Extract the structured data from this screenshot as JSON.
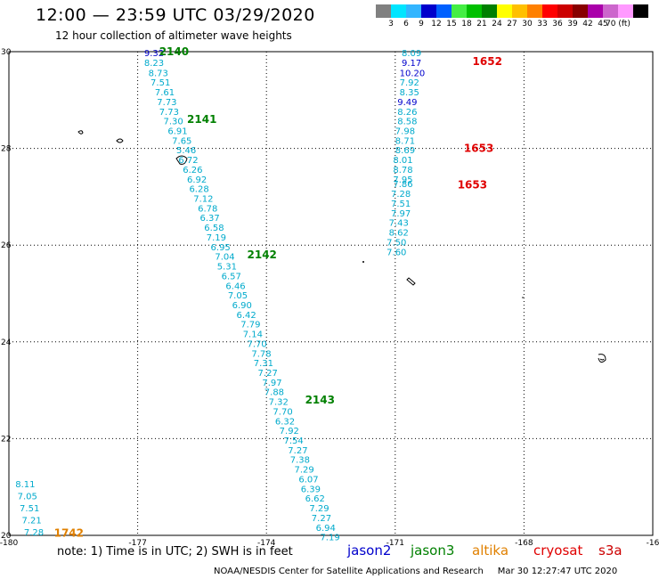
{
  "header": {
    "title": "12:00 — 23:59 UTC 03/29/2020",
    "subtitle": "12 hour collection of altimeter wave heights"
  },
  "legend": {
    "colors": [
      "#808080",
      "#00e5ff",
      "#33b5ff",
      "#0000cc",
      "#0060ff",
      "#44ee44",
      "#00c000",
      "#008000",
      "#ffff00",
      "#ffc000",
      "#ff8000",
      "#ff0000",
      "#cc0000",
      "#880000",
      "#aa00aa",
      "#cc66cc",
      "#ff99ff",
      "#000000"
    ],
    "labels": [
      "3",
      "6",
      "9",
      "12",
      "15",
      "18",
      "21",
      "24",
      "27",
      "30",
      "33",
      "36",
      "39",
      "42",
      "45",
      "70 (ft)"
    ]
  },
  "axes": {
    "x_ticks": [
      "-180",
      "-177",
      "-174",
      "-171",
      "-168",
      "-16"
    ],
    "y_ticks": [
      "30",
      "28",
      "26",
      "24",
      "22",
      "20"
    ]
  },
  "tracks": [
    {
      "lon": -176.85,
      "lat": 29.98,
      "text": "9.32",
      "color": "#0000cc"
    },
    {
      "lon": -176.85,
      "lat": 29.78,
      "text": "8.23",
      "color": "#00aacc"
    },
    {
      "lon": -176.75,
      "lat": 29.57,
      "text": "8.73",
      "color": "#00aacc"
    },
    {
      "lon": -176.7,
      "lat": 29.37,
      "text": "7.51",
      "color": "#00aacc"
    },
    {
      "lon": -176.6,
      "lat": 29.17,
      "text": "7.61",
      "color": "#00aacc"
    },
    {
      "lon": -176.55,
      "lat": 28.97,
      "text": "7.73",
      "color": "#00aacc"
    },
    {
      "lon": -176.5,
      "lat": 28.77,
      "text": "7.73",
      "color": "#00aacc"
    },
    {
      "lon": -176.4,
      "lat": 28.57,
      "text": "7.30",
      "color": "#00aacc"
    },
    {
      "lon": -176.3,
      "lat": 28.37,
      "text": "6.91",
      "color": "#00aacc"
    },
    {
      "lon": -176.2,
      "lat": 28.17,
      "text": "7.65",
      "color": "#00aacc"
    },
    {
      "lon": -176.1,
      "lat": 27.97,
      "text": "5.46",
      "color": "#00aacc"
    },
    {
      "lon": -176.05,
      "lat": 27.77,
      "text": "6.72",
      "color": "#00aacc"
    },
    {
      "lon": -175.95,
      "lat": 27.57,
      "text": "6.26",
      "color": "#00aacc"
    },
    {
      "lon": -175.85,
      "lat": 27.37,
      "text": "6.92",
      "color": "#00aacc"
    },
    {
      "lon": -175.8,
      "lat": 27.17,
      "text": "6.28",
      "color": "#00aacc"
    },
    {
      "lon": -175.7,
      "lat": 26.97,
      "text": "7.12",
      "color": "#00aacc"
    },
    {
      "lon": -175.6,
      "lat": 26.77,
      "text": "6.78",
      "color": "#00aacc"
    },
    {
      "lon": -175.55,
      "lat": 26.57,
      "text": "6.37",
      "color": "#00aacc"
    },
    {
      "lon": -175.45,
      "lat": 26.37,
      "text": "6.58",
      "color": "#00aacc"
    },
    {
      "lon": -175.4,
      "lat": 26.17,
      "text": "7.19",
      "color": "#00aacc"
    },
    {
      "lon": -175.3,
      "lat": 25.97,
      "text": "6.95",
      "color": "#00aacc"
    },
    {
      "lon": -175.2,
      "lat": 25.77,
      "text": "7.04",
      "color": "#00aacc"
    },
    {
      "lon": -175.15,
      "lat": 25.57,
      "text": "5.31",
      "color": "#00aacc"
    },
    {
      "lon": -175.05,
      "lat": 25.37,
      "text": "6.57",
      "color": "#00aacc"
    },
    {
      "lon": -174.95,
      "lat": 25.17,
      "text": "6.46",
      "color": "#00aacc"
    },
    {
      "lon": -174.9,
      "lat": 24.97,
      "text": "7.05",
      "color": "#00aacc"
    },
    {
      "lon": -174.8,
      "lat": 24.77,
      "text": "6.90",
      "color": "#00aacc"
    },
    {
      "lon": -174.7,
      "lat": 24.57,
      "text": "6.42",
      "color": "#00aacc"
    },
    {
      "lon": -174.6,
      "lat": 24.37,
      "text": "7.79",
      "color": "#00aacc"
    },
    {
      "lon": -174.55,
      "lat": 24.17,
      "text": "7.14",
      "color": "#00aacc"
    },
    {
      "lon": -174.45,
      "lat": 23.97,
      "text": "7.70",
      "color": "#00aacc"
    },
    {
      "lon": -174.35,
      "lat": 23.77,
      "text": "7.78",
      "color": "#00aacc"
    },
    {
      "lon": -174.3,
      "lat": 23.57,
      "text": "7.31",
      "color": "#00aacc"
    },
    {
      "lon": -174.2,
      "lat": 23.37,
      "text": "7.27",
      "color": "#00aacc"
    },
    {
      "lon": -174.1,
      "lat": 23.17,
      "text": "7.97",
      "color": "#00aacc"
    },
    {
      "lon": -174.05,
      "lat": 22.97,
      "text": "7.88",
      "color": "#00aacc"
    },
    {
      "lon": -173.95,
      "lat": 22.77,
      "text": "7.32",
      "color": "#00aacc"
    },
    {
      "lon": -173.85,
      "lat": 22.57,
      "text": "7.70",
      "color": "#00aacc"
    },
    {
      "lon": -173.8,
      "lat": 22.37,
      "text": "6.32",
      "color": "#00aacc"
    },
    {
      "lon": -173.7,
      "lat": 22.17,
      "text": "7.92",
      "color": "#00aacc"
    },
    {
      "lon": -173.6,
      "lat": 21.97,
      "text": "7.54",
      "color": "#00aacc"
    },
    {
      "lon": -173.5,
      "lat": 21.77,
      "text": "7.27",
      "color": "#00aacc"
    },
    {
      "lon": -173.45,
      "lat": 21.57,
      "text": "7.38",
      "color": "#00aacc"
    },
    {
      "lon": -173.35,
      "lat": 21.37,
      "text": "7.29",
      "color": "#00aacc"
    },
    {
      "lon": -173.25,
      "lat": 21.17,
      "text": "6.07",
      "color": "#00aacc"
    },
    {
      "lon": -173.2,
      "lat": 20.97,
      "text": "6.39",
      "color": "#00aacc"
    },
    {
      "lon": -173.1,
      "lat": 20.77,
      "text": "6.62",
      "color": "#00aacc"
    },
    {
      "lon": -173.0,
      "lat": 20.57,
      "text": "7.29",
      "color": "#00aacc"
    },
    {
      "lon": -172.95,
      "lat": 20.37,
      "text": "7.27",
      "color": "#00aacc"
    },
    {
      "lon": -172.85,
      "lat": 20.17,
      "text": "6.94",
      "color": "#00aacc"
    },
    {
      "lon": -172.75,
      "lat": 19.97,
      "text": "7.19",
      "color": "#00aacc"
    },
    {
      "lon": -170.85,
      "lat": 29.98,
      "text": "8.09",
      "color": "#00aacc"
    },
    {
      "lon": -170.85,
      "lat": 29.78,
      "text": "9.17",
      "color": "#0000cc"
    },
    {
      "lon": -170.9,
      "lat": 29.57,
      "text": "10.20",
      "color": "#0000cc"
    },
    {
      "lon": -170.9,
      "lat": 29.37,
      "text": "7.92",
      "color": "#00aacc"
    },
    {
      "lon": -170.9,
      "lat": 29.17,
      "text": "8.35",
      "color": "#00aacc"
    },
    {
      "lon": -170.95,
      "lat": 28.97,
      "text": "9.49",
      "color": "#0000cc"
    },
    {
      "lon": -170.95,
      "lat": 28.77,
      "text": "8.26",
      "color": "#00aacc"
    },
    {
      "lon": -170.95,
      "lat": 28.57,
      "text": "8.58",
      "color": "#00aacc"
    },
    {
      "lon": -171.0,
      "lat": 28.37,
      "text": "7.98",
      "color": "#00aacc"
    },
    {
      "lon": -171.0,
      "lat": 28.17,
      "text": "8.71",
      "color": "#00aacc"
    },
    {
      "lon": -171.0,
      "lat": 27.97,
      "text": "8.69",
      "color": "#00aacc"
    },
    {
      "lon": -171.05,
      "lat": 27.77,
      "text": "8.01",
      "color": "#00aacc"
    },
    {
      "lon": -171.05,
      "lat": 27.57,
      "text": "8.78",
      "color": "#00aacc"
    },
    {
      "lon": -171.05,
      "lat": 27.37,
      "text": "7.95",
      "color": "#00aacc"
    },
    {
      "lon": -171.05,
      "lat": 27.27,
      "text": "7.86",
      "color": "#00aacc"
    },
    {
      "lon": -171.1,
      "lat": 27.07,
      "text": "7.28",
      "color": "#00aacc"
    },
    {
      "lon": -171.1,
      "lat": 26.87,
      "text": "7.51",
      "color": "#00aacc"
    },
    {
      "lon": -171.1,
      "lat": 26.67,
      "text": "7.97",
      "color": "#00aacc"
    },
    {
      "lon": -171.15,
      "lat": 26.47,
      "text": "7.43",
      "color": "#00aacc"
    },
    {
      "lon": -171.15,
      "lat": 26.27,
      "text": "8.62",
      "color": "#00aacc"
    },
    {
      "lon": -171.2,
      "lat": 26.07,
      "text": "7.50",
      "color": "#00aacc"
    },
    {
      "lon": -171.2,
      "lat": 25.87,
      "text": "7.60",
      "color": "#00aacc"
    },
    {
      "lon": -179.85,
      "lat": 21.07,
      "text": "8.11",
      "color": "#00aacc"
    },
    {
      "lon": -179.8,
      "lat": 20.82,
      "text": "7.05",
      "color": "#00aacc"
    },
    {
      "lon": -179.75,
      "lat": 20.57,
      "text": "7.51",
      "color": "#00aacc"
    },
    {
      "lon": -179.7,
      "lat": 20.32,
      "text": "7.21",
      "color": "#00aacc"
    },
    {
      "lon": -179.65,
      "lat": 20.07,
      "text": "7.28",
      "color": "#00aacc"
    }
  ],
  "pass_labels": [
    {
      "lon": -176.5,
      "lat": 30.0,
      "text": "2140",
      "color": "#008000"
    },
    {
      "lon": -175.85,
      "lat": 28.6,
      "text": "2141",
      "color": "#008000"
    },
    {
      "lon": -174.45,
      "lat": 25.8,
      "text": "2142",
      "color": "#008000"
    },
    {
      "lon": -173.1,
      "lat": 22.8,
      "text": "2143",
      "color": "#008000"
    },
    {
      "lon": -169.2,
      "lat": 29.8,
      "text": "1652",
      "color": "#e00000"
    },
    {
      "lon": -169.4,
      "lat": 28.0,
      "text": "1653",
      "color": "#e00000"
    },
    {
      "lon": -169.55,
      "lat": 27.25,
      "text": "1653",
      "color": "#e00000"
    },
    {
      "lon": -178.95,
      "lat": 20.05,
      "text": "1742",
      "color": "#e08000"
    }
  ],
  "footer": {
    "note": "note: 1) Time is in UTC; 2) SWH is in feet",
    "satellites": [
      {
        "label": "jason2",
        "color": "#0000cc"
      },
      {
        "label": "jason3",
        "color": "#008000"
      },
      {
        "label": "altika",
        "color": "#e08000"
      },
      {
        "label": "cryosat",
        "color": "#e00000"
      },
      {
        "label": "s3a",
        "color": "#cc0000"
      }
    ],
    "credit": "NOAA/NESDIS Center for Satellite Applications and Research     Mar 30 12:27:47 UTC 2020"
  }
}
